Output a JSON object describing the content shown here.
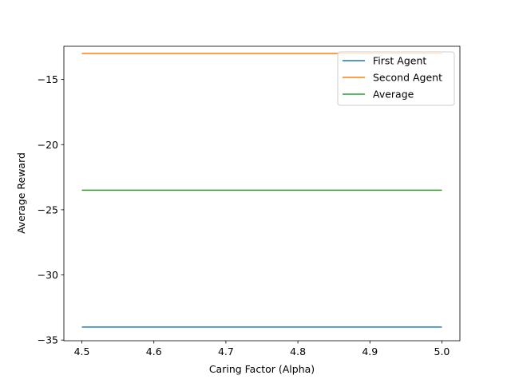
{
  "chart_data": {
    "type": "line",
    "title": "",
    "xlabel": "Caring Factor (Alpha)",
    "ylabel": "Average Reward",
    "x": [
      4.5,
      5.0
    ],
    "xlim": [
      4.475,
      5.025
    ],
    "ylim": [
      -35.05,
      -12.45
    ],
    "xticks": [
      4.5,
      4.6,
      4.7,
      4.8,
      4.9,
      5.0
    ],
    "xtick_labels": [
      "4.5",
      "4.6",
      "4.7",
      "4.8",
      "4.9",
      "5.0"
    ],
    "yticks": [
      -35,
      -30,
      -25,
      -20,
      -15
    ],
    "ytick_labels": [
      "−35",
      "−30",
      "−25",
      "−20",
      "−15"
    ],
    "grid": false,
    "legend_position": "top-right",
    "series": [
      {
        "name": "First Agent",
        "color": "#1f77b4",
        "values": [
          -34.0,
          -34.0
        ]
      },
      {
        "name": "Second Agent",
        "color": "#ff7f0e",
        "values": [
          -13.0,
          -13.0
        ]
      },
      {
        "name": "Average",
        "color": "#2ca02c",
        "values": [
          -23.5,
          -23.5
        ]
      }
    ]
  }
}
